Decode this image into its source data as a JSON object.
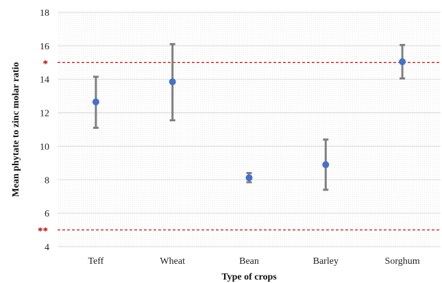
{
  "chart_data": {
    "type": "scatter",
    "xlabel": "Type of crops",
    "ylabel": "Mean phytate to zinc molar ratio",
    "ylim": [
      4,
      18
    ],
    "yticks": [
      4,
      6,
      8,
      10,
      12,
      14,
      16,
      18
    ],
    "categories": [
      "Teff",
      "Wheat",
      "Bean",
      "Barley",
      "Sorghum"
    ],
    "means": [
      12.65,
      13.85,
      8.12,
      8.9,
      15.05
    ],
    "err_low": [
      11.1,
      11.55,
      7.85,
      7.4,
      14.05
    ],
    "err_high": [
      14.15,
      16.1,
      8.4,
      10.4,
      16.05
    ],
    "grid": true,
    "reference_lines": [
      {
        "value": 15,
        "marker": "*"
      },
      {
        "value": 5,
        "marker": "**"
      }
    ],
    "colors": {
      "point": "#4472C4",
      "errorbar": "#7F7F7F",
      "reference": "#C00000",
      "grid": "#D9D9D9"
    }
  }
}
